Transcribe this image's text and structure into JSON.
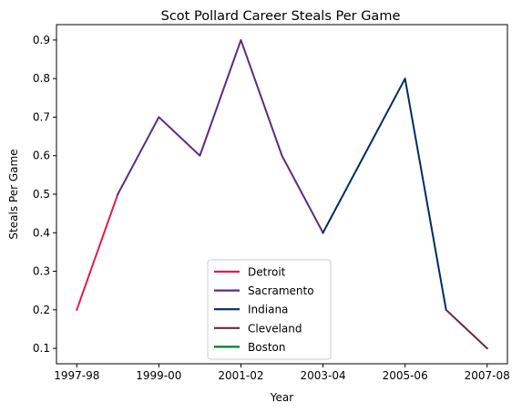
{
  "chart_data": {
    "type": "line",
    "title": "Scot Pollard Career Steals Per Game",
    "xlabel": "Year",
    "ylabel": "Steals Per Game",
    "x": [
      "1997-98",
      "1998-99",
      "1999-00",
      "2000-01",
      "2001-02",
      "2002-03",
      "2003-04",
      "2004-05",
      "2005-06",
      "2006-07",
      "2007-08"
    ],
    "x_tick_labels": [
      "1997-98",
      "1999-00",
      "2001-02",
      "2003-04",
      "2005-06",
      "2007-08"
    ],
    "ylim": [
      0.06,
      0.94
    ],
    "y_ticks": [
      "0.1",
      "0.2",
      "0.3",
      "0.4",
      "0.5",
      "0.6",
      "0.7",
      "0.8",
      "0.9"
    ],
    "legend_position": "lower-center",
    "grid": false,
    "series": [
      {
        "name": "Detroit",
        "color": "#e31b4f",
        "x": [
          "1997-98",
          "1998-99"
        ],
        "values": [
          0.2,
          0.5
        ]
      },
      {
        "name": "Sacramento",
        "color": "#5b2c83",
        "x": [
          "1998-99",
          "1999-00",
          "2000-01",
          "2001-02",
          "2002-03",
          "2003-04"
        ],
        "values": [
          0.5,
          0.7,
          0.6,
          0.9,
          0.6,
          0.4
        ]
      },
      {
        "name": "Indiana",
        "color": "#002d62",
        "x": [
          "2003-04",
          "2004-05",
          "2005-06",
          "2006-07"
        ],
        "values": [
          0.4,
          0.6,
          0.8,
          0.2
        ]
      },
      {
        "name": "Cleveland",
        "color": "#6f263d",
        "x": [
          "2006-07",
          "2007-08"
        ],
        "values": [
          0.2,
          0.1
        ]
      },
      {
        "name": "Boston",
        "color": "#007a33",
        "x": [],
        "values": []
      }
    ]
  }
}
